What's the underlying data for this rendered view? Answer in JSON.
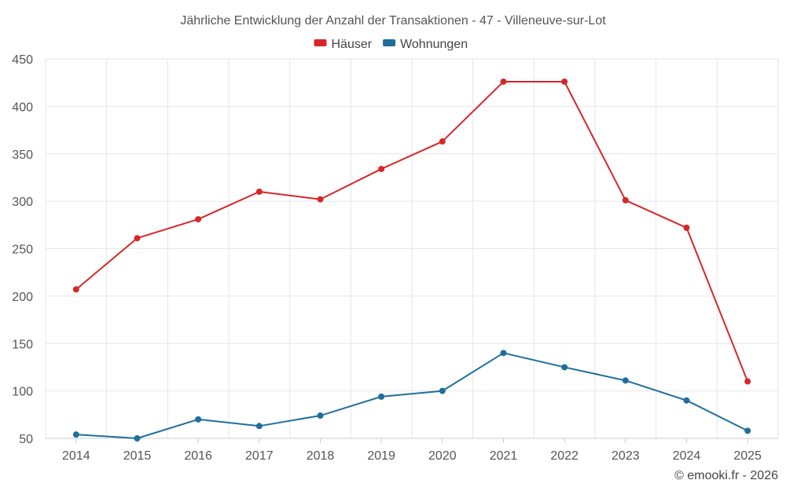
{
  "chart_data": {
    "type": "line",
    "title": "Jährliche Entwicklung der Anzahl der Transaktionen - 47 - Villeneuve-sur-Lot",
    "categories": [
      "2014",
      "2015",
      "2016",
      "2017",
      "2018",
      "2019",
      "2020",
      "2021",
      "2022",
      "2023",
      "2024",
      "2025"
    ],
    "series": [
      {
        "name": "Häuser",
        "color": "#d62728",
        "values": [
          207,
          261,
          281,
          310,
          302,
          334,
          363,
          426,
          426,
          301,
          272,
          110
        ]
      },
      {
        "name": "Wohnungen",
        "color": "#1f6e9c",
        "values": [
          54,
          50,
          70,
          63,
          74,
          94,
          100,
          140,
          125,
          111,
          90,
          58
        ]
      }
    ],
    "xlabel": "",
    "ylabel": "",
    "ylim": [
      50,
      450
    ],
    "yticks": [
      50,
      100,
      150,
      200,
      250,
      300,
      350,
      400,
      450
    ],
    "grid": true,
    "legend": "top-center",
    "credit": "© emooki.fr - 2026"
  }
}
